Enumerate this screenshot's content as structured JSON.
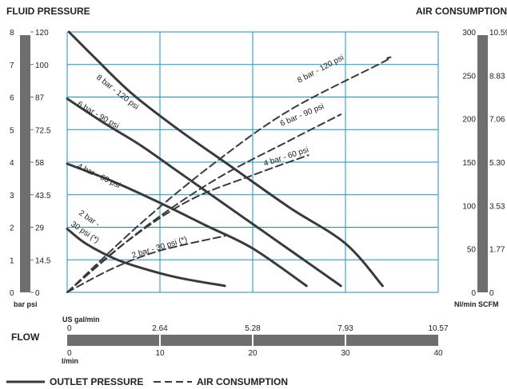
{
  "chart_data": {
    "type": "line",
    "headers": {
      "left": "FLUID PRESSURE",
      "right": "AIR CONSUMPTION",
      "flow": "FLOW"
    },
    "left_axis": {
      "bar_ticks": [
        "0",
        "1",
        "2",
        "3",
        "4",
        "5",
        "6",
        "7",
        "8"
      ],
      "psi_ticks": [
        "0",
        "14.5",
        "29",
        "43.5",
        "58",
        "72.5",
        "87",
        "100",
        "120"
      ],
      "unit_label": "bar psi",
      "range_bar": [
        0,
        8
      ]
    },
    "right_axis": {
      "nl_ticks": [
        "0",
        "50",
        "100",
        "150",
        "200",
        "250",
        "300"
      ],
      "scfm_ticks": [
        "0",
        "1.77",
        "3.53",
        "5.30",
        "7.06",
        "8.83",
        "10.59"
      ],
      "unit_label": "Nl/min SCFM",
      "range_nlmin": [
        0,
        300
      ]
    },
    "flow_axis": {
      "gal_label": "US gal/min",
      "gal_ticks": [
        "0",
        "2.64",
        "5.28",
        "7.93",
        "10.57"
      ],
      "lmin_label": "l/min",
      "lmin_ticks": [
        "0",
        "10",
        "20",
        "30",
        "40"
      ],
      "range_lmin": [
        0,
        40
      ]
    },
    "grid": true,
    "legend": {
      "position": "bottom-left",
      "outlet": "OUTLET PRESSURE",
      "air": "AIR CONSUMPTION"
    },
    "colors": {
      "curve": "#3a3a3a",
      "grid": "#1a8fc8",
      "axis_bar": "#6d6e70"
    },
    "series": [
      {
        "name": "8 bar - 120 psi",
        "kind": "outlet_pressure",
        "points": [
          [
            0.2,
            8.0
          ],
          [
            3,
            7.2
          ],
          [
            7,
            6.1
          ],
          [
            12,
            5.0
          ],
          [
            18,
            3.8
          ],
          [
            24,
            2.6
          ],
          [
            30,
            1.5
          ],
          [
            34,
            0.2
          ]
        ]
      },
      {
        "name": "6 bar - 90 psi",
        "kind": "outlet_pressure",
        "points": [
          [
            0,
            5.95
          ],
          [
            4,
            5.2
          ],
          [
            8,
            4.5
          ],
          [
            12,
            3.7
          ],
          [
            16,
            2.9
          ],
          [
            20,
            2.1
          ],
          [
            24,
            1.3
          ],
          [
            29.5,
            0.2
          ]
        ]
      },
      {
        "name": "4 bar - 60 psi",
        "kind": "outlet_pressure",
        "points": [
          [
            0,
            3.95
          ],
          [
            5,
            3.4
          ],
          [
            10,
            2.75
          ],
          [
            15,
            2.05
          ],
          [
            20,
            1.35
          ],
          [
            25.8,
            0.2
          ]
        ]
      },
      {
        "name": "2 bar - 30 psi (*)",
        "kind": "outlet_pressure",
        "points": [
          [
            0,
            1.95
          ],
          [
            2,
            1.5
          ],
          [
            5,
            1.05
          ],
          [
            8,
            0.75
          ],
          [
            12,
            0.45
          ],
          [
            17,
            0.2
          ]
        ]
      },
      {
        "name": "8 bar - 120 psi",
        "kind": "air_consumption",
        "points": [
          [
            0,
            0
          ],
          [
            8,
            80
          ],
          [
            16,
            150
          ],
          [
            24,
            210
          ],
          [
            34,
            265
          ],
          [
            34.5,
            270
          ]
        ]
      },
      {
        "name": "6 bar - 90 psi",
        "kind": "air_consumption",
        "points": [
          [
            0,
            0
          ],
          [
            8,
            72
          ],
          [
            16,
            130
          ],
          [
            24,
            175
          ],
          [
            29.5,
            205
          ]
        ]
      },
      {
        "name": "4 bar - 60 psi",
        "kind": "air_consumption",
        "points": [
          [
            0,
            0
          ],
          [
            6,
            55
          ],
          [
            13,
            105
          ],
          [
            20,
            135
          ],
          [
            26,
            158
          ]
        ]
      },
      {
        "name": "2 bar - 30 psi (*)",
        "kind": "air_consumption",
        "points": [
          [
            0,
            0
          ],
          [
            5,
            28
          ],
          [
            10,
            48
          ],
          [
            17,
            65
          ]
        ]
      }
    ],
    "labels": [
      {
        "text": "8 bar - 120 psi",
        "series": 0
      },
      {
        "text": "6 bar - 90 psi",
        "series": 1
      },
      {
        "text": "4 bar - 60 psi",
        "series": 2
      },
      {
        "text": "2 bar -",
        "series": 3
      },
      {
        "text": "30 psi (*)",
        "series": 3
      },
      {
        "text": "8 bar - 120 psi",
        "series": 4
      },
      {
        "text": "6 bar - 90 psi",
        "series": 5
      },
      {
        "text": "4 bar - 60 psi",
        "series": 6
      },
      {
        "text": "2 bar - 30 psi (*)",
        "series": 7
      }
    ]
  }
}
